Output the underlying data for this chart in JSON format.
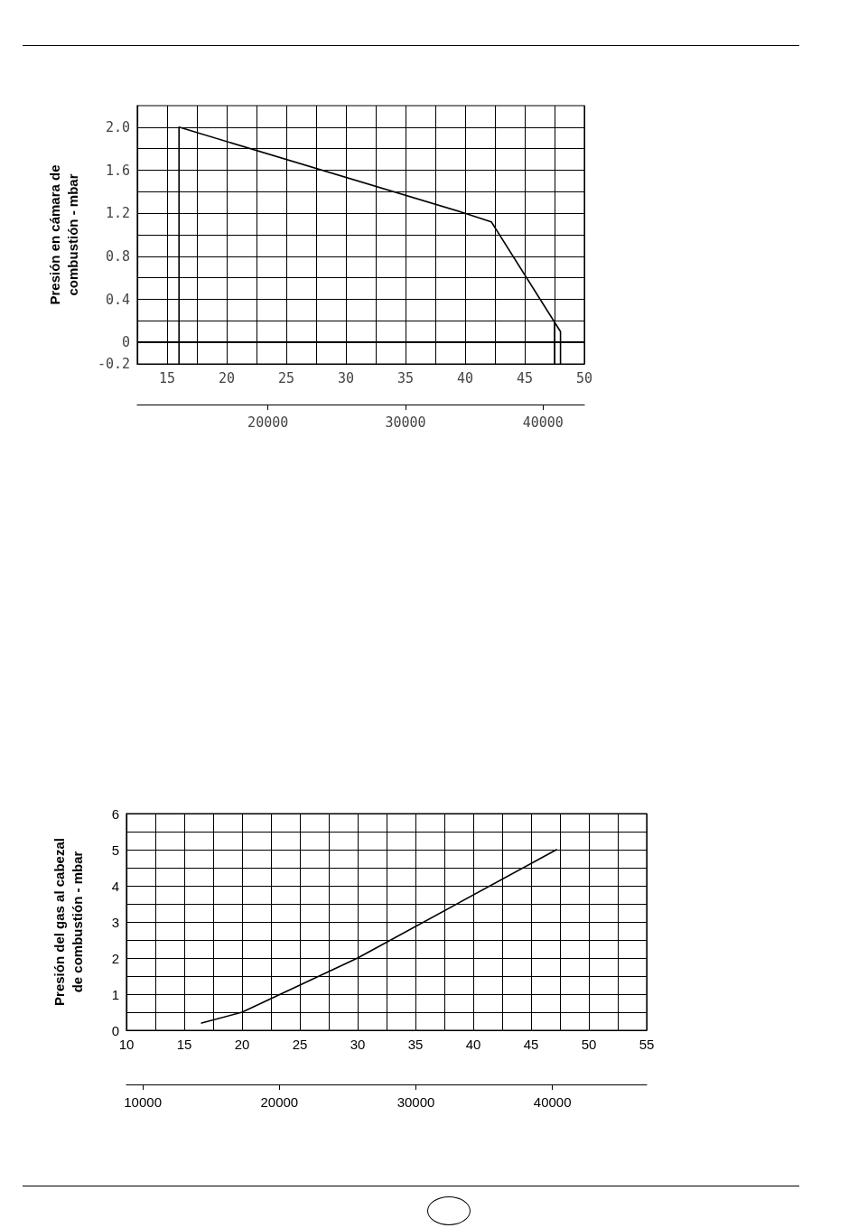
{
  "chart_data": [
    {
      "type": "line",
      "ylabel": "Presión en cámara de combustión - mbar",
      "marker": "none",
      "grid": true,
      "series": [
        {
          "color": "#000000",
          "x": [
            16,
            16,
            40,
            42.2,
            48,
            48
          ],
          "values": [
            -0.2,
            2.0,
            1.2,
            1.12,
            0.1,
            -0.2
          ]
        },
        {
          "color": "#000000",
          "x": [
            47.5,
            47.5
          ],
          "values": [
            -0.2,
            0.2
          ]
        }
      ],
      "xlim": [
        12.5,
        50
      ],
      "xticks": [
        15,
        {
          "value": 17.5,
          "label": null
        },
        20,
        {
          "value": 22.5,
          "label": null
        },
        25,
        {
          "value": 27.5,
          "label": null
        },
        30,
        {
          "value": 32.5,
          "label": null
        },
        35,
        {
          "value": 37.5,
          "label": null
        },
        40,
        {
          "value": 42.5,
          "label": null
        },
        45,
        {
          "value": 47.5,
          "label": null
        },
        50
      ],
      "ylim": [
        -0.2,
        2.2
      ],
      "yticks": [
        -0.2,
        0,
        {
          "value": 0.2,
          "label": null
        },
        0.4,
        {
          "value": 0.6,
          "label": null
        },
        0.8,
        {
          "value": 1.0,
          "label": null
        },
        1.2,
        {
          "value": 1.4,
          "label": null
        },
        1.6,
        {
          "value": 1.8,
          "label": null
        },
        {
          "value": 2.0,
          "label": "2.0"
        }
      ],
      "x2lim": [
        10500,
        43000
      ],
      "x2ticks": [
        20000,
        30000,
        40000
      ],
      "ref_lines": [
        {
          "axis": "y",
          "value": 0
        }
      ]
    },
    {
      "type": "line",
      "ylabel": "Presión del gas al cabezal de combustión - mbar",
      "marker": "none",
      "grid": true,
      "series": [
        {
          "color": "#000000",
          "x": [
            16.5,
            20,
            30,
            47.2
          ],
          "values": [
            0.2,
            0.5,
            2.0,
            5.0
          ]
        }
      ],
      "xlim": [
        10,
        55
      ],
      "xticks": [
        10,
        {
          "value": 12.5,
          "label": null
        },
        15,
        {
          "value": 17.5,
          "label": null
        },
        20,
        {
          "value": 22.5,
          "label": null
        },
        25,
        {
          "value": 27.5,
          "label": null
        },
        30,
        {
          "value": 32.5,
          "label": null
        },
        35,
        {
          "value": 37.5,
          "label": null
        },
        40,
        {
          "value": 42.5,
          "label": null
        },
        45,
        {
          "value": 47.5,
          "label": null
        },
        50,
        {
          "value": 52.5,
          "label": null
        },
        55
      ],
      "ylim": [
        0,
        6
      ],
      "yticks": [
        0,
        {
          "value": 0.5,
          "label": null
        },
        1,
        {
          "value": 1.5,
          "label": null
        },
        2,
        {
          "value": 2.5,
          "label": null
        },
        3,
        {
          "value": 3.5,
          "label": null
        },
        4,
        {
          "value": 4.5,
          "label": null
        },
        5,
        {
          "value": 5.5,
          "label": null
        },
        6
      ],
      "x2lim": [
        8800,
        46900
      ],
      "x2ticks": [
        10000,
        20000,
        30000,
        40000
      ]
    }
  ]
}
